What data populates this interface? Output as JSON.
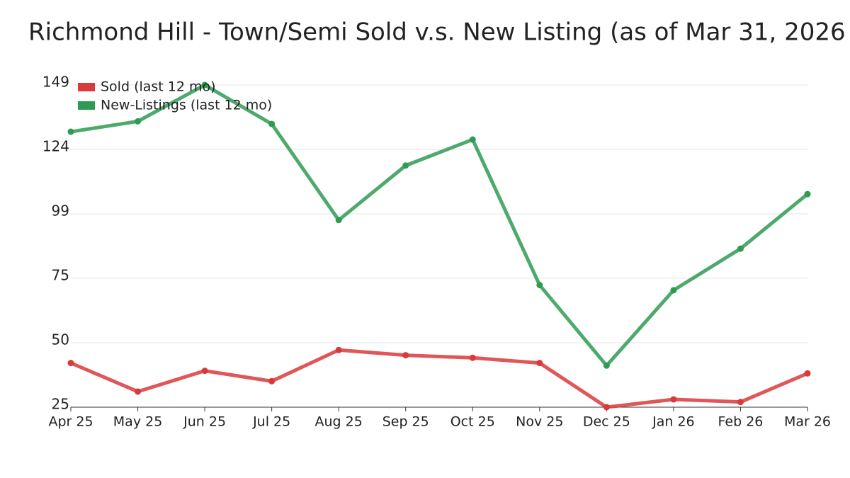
{
  "chart_data": {
    "type": "line",
    "title": "Richmond Hill - Town/Semi Sold v.s. New Listing (as of Mar 31, 2026",
    "categories": [
      "Apr 25",
      "May 25",
      "Jun 25",
      "Jul 25",
      "Aug 25",
      "Sep 25",
      "Oct 25",
      "Nov 25",
      "Dec 25",
      "Jan 26",
      "Feb 26",
      "Mar 26"
    ],
    "series": [
      {
        "name": "Sold (last 12 mo)",
        "color": "#d9393b",
        "values": [
          42,
          31,
          39,
          35,
          47,
          45,
          44,
          42,
          25,
          28,
          27,
          38
        ]
      },
      {
        "name": "New-Listings (last 12 mo)",
        "color": "#2e9b52",
        "values": [
          131,
          135,
          149,
          134,
          97,
          118,
          128,
          72,
          41,
          70,
          86,
          107
        ]
      }
    ],
    "ylim": [
      25,
      149
    ],
    "yticks": [
      25,
      {
        "value": 49.8,
        "label": "50"
      },
      {
        "value": 74.6,
        "label": "75"
      },
      {
        "value": 99.4,
        "label": "99"
      },
      {
        "value": 124.2,
        "label": "124"
      },
      149
    ],
    "grid": true,
    "legend": "top-left"
  }
}
